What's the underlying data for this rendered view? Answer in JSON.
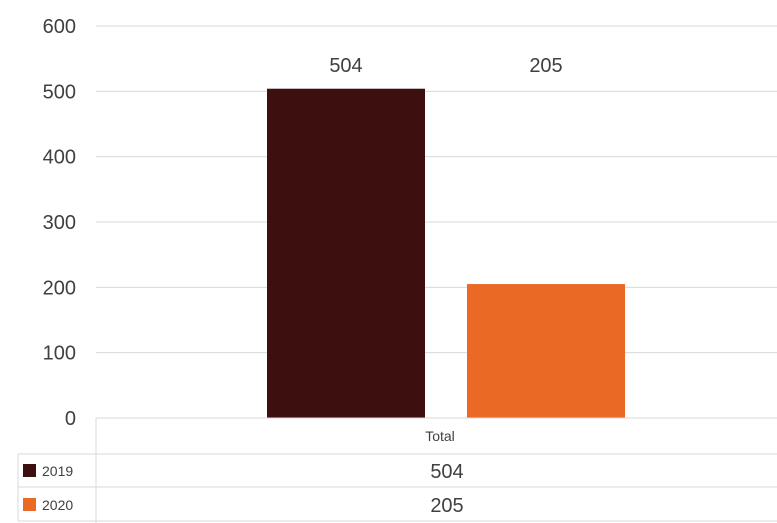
{
  "chart_data": {
    "type": "bar",
    "categories": [
      "Total"
    ],
    "series": [
      {
        "name": "2019",
        "values": [
          504
        ],
        "color": "#3d0f0e",
        "data_label": "504"
      },
      {
        "name": "2020",
        "values": [
          205
        ],
        "color": "#ea6925",
        "data_label": "205"
      }
    ],
    "ylim": [
      0,
      600
    ],
    "yticks": [
      "0",
      "100",
      "200",
      "300",
      "400",
      "500",
      "600"
    ],
    "grid": true,
    "legend": "data-table"
  }
}
